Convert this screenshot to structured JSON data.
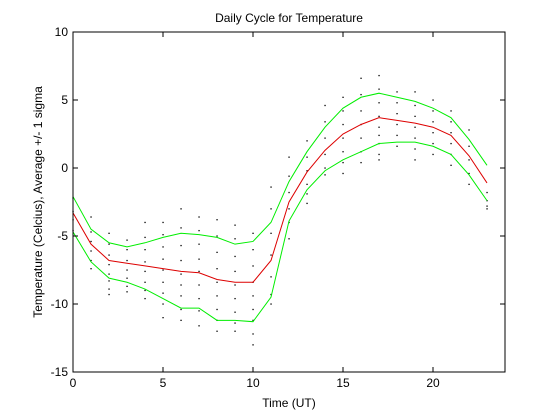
{
  "chart_data": {
    "type": "line",
    "title": "Daily Cycle for Temperature",
    "xlabel": "Time (UT)",
    "ylabel": "Temperature (Celcius), Average +/- 1 sigma",
    "xlim": [
      0,
      24
    ],
    "ylim": [
      -15,
      10
    ],
    "xticks": [
      0,
      5,
      10,
      15,
      20
    ],
    "yticks": [
      -15,
      -10,
      -5,
      0,
      5,
      10
    ],
    "grid": false,
    "x": [
      0,
      1,
      2,
      3,
      4,
      5,
      6,
      7,
      8,
      9,
      10,
      11,
      12,
      13,
      14,
      15,
      16,
      17,
      18,
      19,
      20,
      21,
      22,
      23
    ],
    "series": [
      {
        "color": "#00ee00",
        "values": [
          -2.1,
          -4.5,
          -5.5,
          -5.8,
          -5.5,
          -5.1,
          -4.8,
          -4.9,
          -5.1,
          -5.6,
          -5.4,
          -4.0,
          -1.0,
          1.2,
          3.0,
          4.4,
          5.2,
          5.5,
          5.2,
          4.9,
          4.4,
          3.7,
          2.1,
          0.2
        ]
      },
      {
        "color": "#dd0000",
        "values": [
          -3.3,
          -5.6,
          -6.8,
          -7.0,
          -7.2,
          -7.4,
          -7.6,
          -7.7,
          -8.2,
          -8.4,
          -8.4,
          -6.8,
          -2.5,
          -0.3,
          1.3,
          2.5,
          3.2,
          3.7,
          3.5,
          3.3,
          3.0,
          2.4,
          0.9,
          -1.1
        ]
      },
      {
        "color": "#00ee00",
        "values": [
          -4.7,
          -6.9,
          -8.1,
          -8.4,
          -8.9,
          -9.6,
          -10.3,
          -10.3,
          -11.2,
          -11.2,
          -11.3,
          -9.5,
          -3.9,
          -1.6,
          -0.2,
          0.6,
          1.2,
          1.8,
          1.9,
          1.9,
          1.6,
          1.0,
          -0.5,
          -2.4
        ]
      }
    ],
    "observations": [
      [
        0,
        -2.2
      ],
      [
        0,
        -3.2
      ],
      [
        0,
        -3.8
      ],
      [
        0,
        -4.6
      ],
      [
        1,
        -3.6
      ],
      [
        1,
        -4.7
      ],
      [
        1,
        -5.4
      ],
      [
        1,
        -6.1
      ],
      [
        1,
        -6.8
      ],
      [
        1,
        -7.4
      ],
      [
        2,
        -4.8
      ],
      [
        2,
        -5.6
      ],
      [
        2,
        -6.4
      ],
      [
        2,
        -7.1
      ],
      [
        2,
        -7.8
      ],
      [
        2,
        -8.3
      ],
      [
        2,
        -8.9
      ],
      [
        2,
        -9.3
      ],
      [
        3,
        -5.3
      ],
      [
        3,
        -6.0
      ],
      [
        3,
        -6.8
      ],
      [
        3,
        -7.5
      ],
      [
        3,
        -8.1
      ],
      [
        3,
        -8.7
      ],
      [
        3,
        -9.1
      ],
      [
        4,
        -4.0
      ],
      [
        4,
        -5.1
      ],
      [
        4,
        -6.0
      ],
      [
        4,
        -6.9
      ],
      [
        4,
        -7.6
      ],
      [
        4,
        -8.4
      ],
      [
        4,
        -9.0
      ],
      [
        4,
        -9.6
      ],
      [
        5,
        -4.0
      ],
      [
        5,
        -4.9
      ],
      [
        5,
        -5.8
      ],
      [
        5,
        -6.7
      ],
      [
        5,
        -7.5
      ],
      [
        5,
        -8.4
      ],
      [
        5,
        -9.2
      ],
      [
        5,
        -10.0
      ],
      [
        5,
        -11.0
      ],
      [
        6,
        -3.0
      ],
      [
        6,
        -4.4
      ],
      [
        6,
        -5.7
      ],
      [
        6,
        -6.8
      ],
      [
        6,
        -7.8
      ],
      [
        6,
        -8.6
      ],
      [
        6,
        -9.4
      ],
      [
        6,
        -10.4
      ],
      [
        6,
        -11.2
      ],
      [
        7,
        -3.6
      ],
      [
        7,
        -4.6
      ],
      [
        7,
        -5.6
      ],
      [
        7,
        -6.7
      ],
      [
        7,
        -7.6
      ],
      [
        7,
        -8.6
      ],
      [
        7,
        -9.6
      ],
      [
        7,
        -10.5
      ],
      [
        7,
        -11.6
      ],
      [
        8,
        -3.8
      ],
      [
        8,
        -5.0
      ],
      [
        8,
        -6.2
      ],
      [
        8,
        -7.4
      ],
      [
        8,
        -8.4
      ],
      [
        8,
        -9.4
      ],
      [
        8,
        -10.4
      ],
      [
        8,
        -11.2
      ],
      [
        8,
        -12.0
      ],
      [
        9,
        -4.2
      ],
      [
        9,
        -5.2
      ],
      [
        9,
        -6.5
      ],
      [
        9,
        -7.6
      ],
      [
        9,
        -8.6
      ],
      [
        9,
        -9.6
      ],
      [
        9,
        -10.6
      ],
      [
        9,
        -11.4
      ],
      [
        9,
        -12.0
      ],
      [
        10,
        -4.8
      ],
      [
        10,
        -6.0
      ],
      [
        10,
        -7.2
      ],
      [
        10,
        -8.4
      ],
      [
        10,
        -9.4
      ],
      [
        10,
        -10.4
      ],
      [
        10,
        -11.2
      ],
      [
        10,
        -12.2
      ],
      [
        10,
        -13.0
      ],
      [
        11,
        -1.4
      ],
      [
        11,
        -3.0
      ],
      [
        11,
        -4.8
      ],
      [
        11,
        -6.4
      ],
      [
        11,
        -8.0
      ],
      [
        11,
        -9.3
      ],
      [
        11,
        -10.0
      ],
      [
        12,
        0.8
      ],
      [
        12,
        -0.6
      ],
      [
        12,
        -1.8
      ],
      [
        12,
        -3.0
      ],
      [
        12,
        -4.0
      ],
      [
        12,
        -5.2
      ],
      [
        13,
        2.0
      ],
      [
        13,
        0.8
      ],
      [
        13,
        -0.2
      ],
      [
        13,
        -1.2
      ],
      [
        13,
        -1.9
      ],
      [
        13,
        -2.6
      ],
      [
        14,
        4.6
      ],
      [
        14,
        3.4
      ],
      [
        14,
        2.2
      ],
      [
        14,
        1.0
      ],
      [
        14,
        0.0
      ],
      [
        14,
        -0.5
      ],
      [
        15,
        5.2
      ],
      [
        15,
        4.2
      ],
      [
        15,
        3.2
      ],
      [
        15,
        2.2
      ],
      [
        15,
        1.2
      ],
      [
        15,
        0.4
      ],
      [
        15,
        -0.4
      ],
      [
        16,
        6.6
      ],
      [
        16,
        5.4
      ],
      [
        16,
        4.2
      ],
      [
        16,
        3.2
      ],
      [
        16,
        2.2
      ],
      [
        16,
        1.2
      ],
      [
        16,
        0.4
      ],
      [
        17,
        6.8
      ],
      [
        17,
        5.8
      ],
      [
        17,
        4.8
      ],
      [
        17,
        3.8
      ],
      [
        17,
        3.0
      ],
      [
        17,
        2.4
      ],
      [
        17,
        1.8
      ],
      [
        17,
        1.0
      ],
      [
        17,
        0.6
      ],
      [
        18,
        5.6
      ],
      [
        18,
        4.8
      ],
      [
        18,
        4.0
      ],
      [
        18,
        3.2
      ],
      [
        18,
        2.4
      ],
      [
        18,
        1.6
      ],
      [
        19,
        5.6
      ],
      [
        19,
        4.6
      ],
      [
        19,
        3.8
      ],
      [
        19,
        3.0
      ],
      [
        19,
        2.2
      ],
      [
        19,
        1.4
      ],
      [
        19,
        0.6
      ],
      [
        20,
        5.0
      ],
      [
        20,
        4.2
      ],
      [
        20,
        3.4
      ],
      [
        20,
        2.6
      ],
      [
        20,
        1.8
      ],
      [
        20,
        1.0
      ],
      [
        21,
        4.2
      ],
      [
        21,
        3.4
      ],
      [
        21,
        2.6
      ],
      [
        21,
        1.8
      ],
      [
        21,
        1.0
      ],
      [
        21,
        0.2
      ],
      [
        22,
        2.8
      ],
      [
        22,
        1.6
      ],
      [
        22,
        0.6
      ],
      [
        22,
        -0.4
      ],
      [
        22,
        -1.2
      ],
      [
        23,
        -1.8
      ],
      [
        23,
        -2.4
      ],
      [
        23,
        -2.8
      ],
      [
        23,
        -3.0
      ]
    ]
  }
}
